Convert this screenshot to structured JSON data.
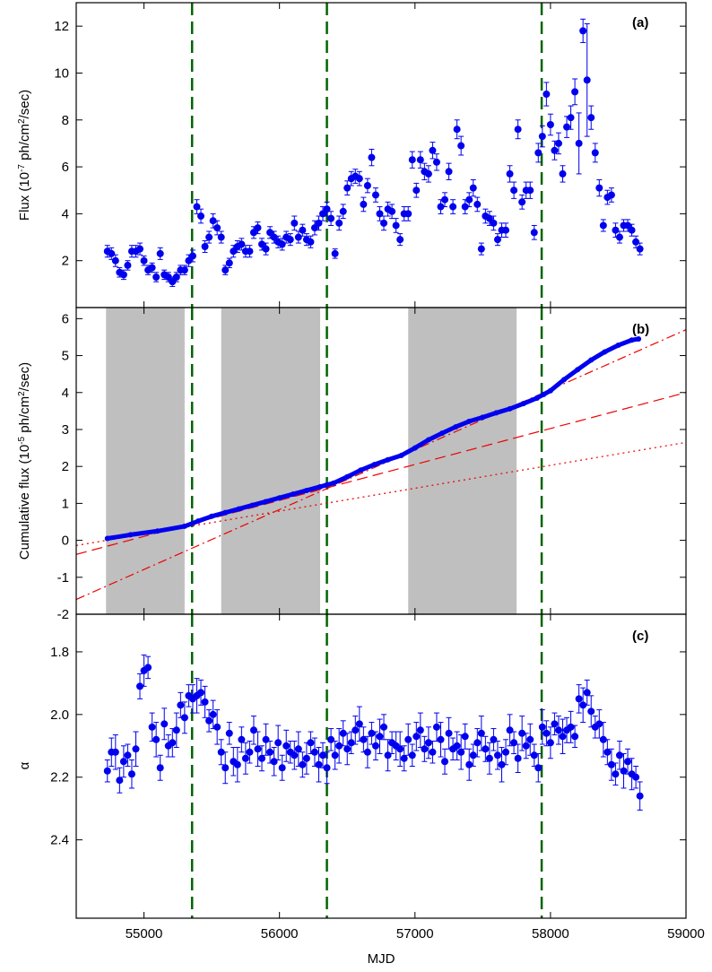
{
  "chart_data": {
    "type": "scatter",
    "xlabel": "MJD",
    "xlim": [
      54500,
      59000
    ],
    "xticks": [
      55000,
      56000,
      57000,
      58000,
      59000
    ],
    "vlines": [
      55355,
      56350,
      57935
    ],
    "colors": {
      "points": "#0000ee",
      "vline": "#006400",
      "fit": "#ee0000",
      "shade": "#bfbfbf"
    },
    "panels": [
      {
        "label": "(a)",
        "ylabel_pre": "Flux (10",
        "ylabel_exp1": "-7",
        "ylabel_mid": " ph/cm",
        "ylabel_exp2": "2",
        "ylabel_post": "/sec)",
        "ylim": [
          0,
          13
        ],
        "yticks": [
          2,
          4,
          6,
          8,
          10,
          12
        ],
        "x": [
          54730,
          54760,
          54790,
          54820,
          54850,
          54880,
          54910,
          54940,
          54970,
          55000,
          55030,
          55060,
          55090,
          55120,
          55150,
          55180,
          55210,
          55240,
          55270,
          55300,
          55330,
          55360,
          55390,
          55420,
          55450,
          55480,
          55510,
          55540,
          55570,
          55600,
          55630,
          55660,
          55690,
          55720,
          55750,
          55780,
          55810,
          55840,
          55870,
          55900,
          55930,
          55960,
          55990,
          56020,
          56050,
          56080,
          56110,
          56140,
          56170,
          56200,
          56230,
          56260,
          56290,
          56320,
          56350,
          56380,
          56410,
          56440,
          56470,
          56500,
          56530,
          56560,
          56590,
          56620,
          56650,
          56680,
          56710,
          56740,
          56770,
          56800,
          56830,
          56860,
          56890,
          56920,
          56950,
          56980,
          57010,
          57040,
          57070,
          57100,
          57130,
          57160,
          57190,
          57220,
          57250,
          57280,
          57310,
          57340,
          57370,
          57400,
          57430,
          57460,
          57490,
          57520,
          57550,
          57580,
          57610,
          57640,
          57670,
          57700,
          57730,
          57760,
          57790,
          57820,
          57850,
          57880,
          57910,
          57940,
          57970,
          58000,
          58030,
          58060,
          58090,
          58120,
          58150,
          58180,
          58210,
          58240,
          58270,
          58300,
          58330,
          58360,
          58390,
          58420,
          58450,
          58480,
          58510,
          58540,
          58570,
          58600,
          58630,
          58660
        ],
        "y": [
          2.4,
          2.3,
          2.0,
          1.5,
          1.4,
          1.8,
          2.4,
          2.4,
          2.5,
          2.0,
          1.6,
          1.7,
          1.3,
          2.3,
          1.4,
          1.3,
          1.1,
          1.3,
          1.6,
          1.6,
          2.0,
          2.2,
          4.3,
          3.9,
          2.6,
          3.0,
          3.7,
          3.4,
          3.0,
          1.6,
          1.9,
          2.4,
          2.6,
          2.7,
          2.4,
          2.4,
          3.2,
          3.4,
          2.7,
          2.5,
          3.2,
          3.0,
          2.8,
          2.7,
          3.0,
          2.9,
          3.6,
          3.0,
          3.3,
          2.9,
          2.8,
          3.4,
          3.6,
          4.0,
          4.2,
          3.8,
          2.3,
          3.6,
          4.1,
          5.1,
          5.5,
          5.6,
          5.5,
          4.4,
          5.2,
          6.4,
          4.8,
          4.0,
          3.6,
          4.2,
          4.1,
          3.5,
          2.9,
          4.0,
          4.0,
          6.3,
          5.0,
          6.3,
          5.8,
          5.7,
          6.7,
          6.2,
          4.3,
          4.6,
          5.8,
          4.3,
          7.6,
          6.9,
          4.3,
          4.6,
          5.1,
          4.4,
          2.5,
          3.9,
          3.8,
          3.6,
          2.9,
          3.3,
          3.3,
          5.7,
          5.0,
          7.6,
          4.5,
          5.0,
          5.0,
          3.2,
          6.6,
          7.3,
          9.1,
          7.8,
          6.7,
          7.0,
          5.7,
          7.7,
          8.1,
          9.2,
          7.0,
          11.8,
          9.7,
          8.1,
          6.6,
          5.1,
          3.5,
          4.7,
          4.8,
          3.3,
          3.0,
          3.5,
          3.5,
          3.3,
          2.8,
          2.5
        ],
        "yerr": [
          0.25,
          0.25,
          0.25,
          0.2,
          0.2,
          0.2,
          0.25,
          0.25,
          0.25,
          0.2,
          0.2,
          0.2,
          0.2,
          0.25,
          0.2,
          0.2,
          0.2,
          0.2,
          0.2,
          0.2,
          0.25,
          0.25,
          0.3,
          0.3,
          0.25,
          0.25,
          0.3,
          0.3,
          0.25,
          0.2,
          0.2,
          0.25,
          0.25,
          0.25,
          0.25,
          0.25,
          0.25,
          0.25,
          0.25,
          0.25,
          0.25,
          0.25,
          0.25,
          0.25,
          0.25,
          0.25,
          0.3,
          0.25,
          0.25,
          0.25,
          0.25,
          0.3,
          0.3,
          0.3,
          0.3,
          0.3,
          0.2,
          0.3,
          0.3,
          0.3,
          0.3,
          0.3,
          0.3,
          0.3,
          0.3,
          0.35,
          0.3,
          0.3,
          0.3,
          0.3,
          0.3,
          0.3,
          0.25,
          0.3,
          0.3,
          0.35,
          0.3,
          0.35,
          0.35,
          0.35,
          0.35,
          0.35,
          0.3,
          0.3,
          0.35,
          0.3,
          0.4,
          0.4,
          0.3,
          0.3,
          0.35,
          0.3,
          0.25,
          0.3,
          0.3,
          0.3,
          0.25,
          0.3,
          0.3,
          0.35,
          0.35,
          0.4,
          0.3,
          0.35,
          0.35,
          0.3,
          0.4,
          0.45,
          0.5,
          0.45,
          0.4,
          0.45,
          0.35,
          0.45,
          0.5,
          0.55,
          1.3,
          0.5,
          2.4,
          0.5,
          0.4,
          0.35,
          0.25,
          0.3,
          0.3,
          0.3,
          0.25,
          0.25,
          0.25,
          0.25,
          0.25,
          0.25
        ]
      },
      {
        "label": "(b)",
        "ylabel_pre": "Cumulative flux (10",
        "ylabel_exp1": "-5",
        "ylabel_mid": " ph/cm",
        "ylabel_exp2": "2",
        "ylabel_post": "/sec)",
        "ylim": [
          -2,
          6.3
        ],
        "yticks": [
          -2,
          -1,
          0,
          1,
          2,
          3,
          4,
          5,
          6
        ],
        "shaded": [
          [
            54720,
            55300
          ],
          [
            55570,
            56300
          ],
          [
            56950,
            57750
          ]
        ],
        "cumulative_curve": {
          "x": [
            54730,
            54900,
            55100,
            55300,
            55400,
            55500,
            55600,
            55700,
            55800,
            55900,
            56000,
            56100,
            56200,
            56300,
            56350,
            56400,
            56500,
            56600,
            56700,
            56800,
            56900,
            57000,
            57100,
            57200,
            57300,
            57400,
            57500,
            57600,
            57700,
            57800,
            57900,
            57950,
            58000,
            58100,
            58200,
            58300,
            58400,
            58500,
            58600,
            58650
          ],
          "y": [
            0.05,
            0.15,
            0.25,
            0.38,
            0.52,
            0.65,
            0.75,
            0.85,
            0.95,
            1.05,
            1.15,
            1.25,
            1.35,
            1.45,
            1.5,
            1.55,
            1.72,
            1.9,
            2.05,
            2.18,
            2.3,
            2.5,
            2.72,
            2.9,
            3.07,
            3.22,
            3.33,
            3.45,
            3.56,
            3.7,
            3.85,
            3.95,
            4.05,
            4.35,
            4.62,
            4.88,
            5.1,
            5.28,
            5.42,
            5.45
          ]
        },
        "fits": [
          {
            "style": "dotted",
            "x": [
              54500,
              59000
            ],
            "y": [
              -0.14,
              2.65
            ]
          },
          {
            "style": "dashed",
            "x": [
              54500,
              59000
            ],
            "y": [
              -0.38,
              4.0
            ]
          },
          {
            "style": "dashdot",
            "x": [
              54500,
              59000
            ],
            "y": [
              -1.6,
              5.7
            ]
          }
        ]
      },
      {
        "label": "(c)",
        "ylabel": "α",
        "ylim": [
          2.65,
          1.68
        ],
        "yticks": [
          1.8,
          2.0,
          2.2,
          2.4
        ],
        "ytick_labels": [
          "1.8",
          "2.0",
          "2.2",
          "2.4"
        ],
        "x": [
          54730,
          54760,
          54790,
          54820,
          54850,
          54880,
          54910,
          54940,
          54970,
          55000,
          55030,
          55060,
          55090,
          55120,
          55150,
          55180,
          55210,
          55240,
          55270,
          55300,
          55330,
          55360,
          55390,
          55420,
          55450,
          55480,
          55510,
          55540,
          55570,
          55600,
          55630,
          55660,
          55690,
          55720,
          55750,
          55780,
          55810,
          55840,
          55870,
          55900,
          55930,
          55960,
          55990,
          56020,
          56050,
          56080,
          56110,
          56140,
          56170,
          56200,
          56230,
          56260,
          56290,
          56320,
          56350,
          56380,
          56410,
          56440,
          56470,
          56500,
          56530,
          56560,
          56590,
          56620,
          56650,
          56680,
          56710,
          56740,
          56770,
          56800,
          56830,
          56860,
          56890,
          56920,
          56950,
          56980,
          57010,
          57040,
          57070,
          57100,
          57130,
          57160,
          57190,
          57220,
          57250,
          57280,
          57310,
          57340,
          57370,
          57400,
          57430,
          57460,
          57490,
          57520,
          57550,
          57580,
          57610,
          57640,
          57670,
          57700,
          57730,
          57760,
          57790,
          57820,
          57850,
          57880,
          57910,
          57940,
          57970,
          58000,
          58030,
          58060,
          58090,
          58120,
          58150,
          58180,
          58210,
          58240,
          58270,
          58300,
          58330,
          58360,
          58390,
          58420,
          58450,
          58480,
          58510,
          58540,
          58570,
          58600,
          58630,
          58660
        ],
        "y": [
          2.18,
          2.12,
          2.12,
          2.21,
          2.15,
          2.13,
          2.19,
          2.11,
          1.91,
          1.86,
          1.85,
          2.04,
          2.08,
          2.17,
          2.03,
          2.1,
          2.09,
          2.05,
          1.97,
          2.01,
          1.94,
          1.95,
          1.94,
          1.93,
          1.96,
          2.02,
          2.0,
          2.04,
          2.12,
          2.17,
          2.06,
          2.15,
          2.16,
          2.08,
          2.14,
          2.12,
          2.05,
          2.11,
          2.14,
          2.08,
          2.12,
          2.15,
          2.09,
          2.17,
          2.1,
          2.12,
          2.13,
          2.11,
          2.16,
          2.14,
          2.09,
          2.12,
          2.16,
          2.13,
          2.17,
          2.08,
          2.13,
          2.1,
          2.06,
          2.11,
          2.09,
          2.05,
          2.03,
          2.08,
          2.12,
          2.06,
          2.1,
          2.07,
          2.04,
          2.13,
          2.09,
          2.1,
          2.11,
          2.14,
          2.08,
          2.13,
          2.07,
          2.05,
          2.11,
          2.09,
          2.12,
          2.04,
          2.08,
          2.15,
          2.06,
          2.11,
          2.1,
          2.12,
          2.07,
          2.16,
          2.13,
          2.09,
          2.06,
          2.11,
          2.14,
          2.08,
          2.13,
          2.16,
          2.12,
          2.05,
          2.09,
          2.14,
          2.06,
          2.1,
          2.08,
          2.13,
          2.17,
          2.04,
          2.06,
          2.09,
          2.03,
          2.05,
          2.07,
          2.05,
          2.04,
          2.07,
          1.95,
          1.97,
          1.93,
          1.99,
          2.04,
          2.03,
          2.08,
          2.12,
          2.16,
          2.19,
          2.13,
          2.18,
          2.15,
          2.19,
          2.2,
          2.26
        ]
      }
    ]
  }
}
